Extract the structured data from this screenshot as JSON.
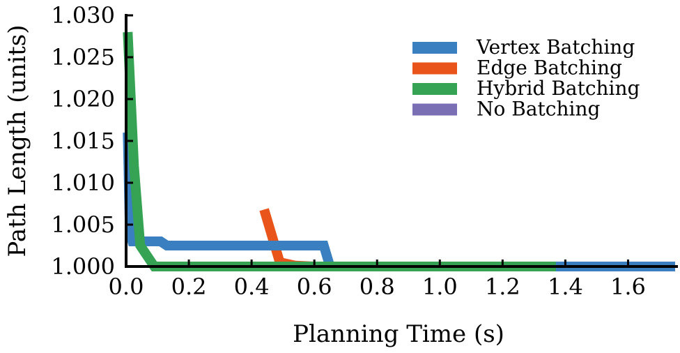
{
  "chart_data": {
    "type": "line",
    "xlabel": "Planning Time (s)",
    "ylabel": "Path Length (units)",
    "xlim": [
      0.0,
      1.75
    ],
    "ylim": [
      1.0,
      1.03
    ],
    "xticks": [
      "0.0",
      "0.2",
      "0.4",
      "0.6",
      "0.8",
      "1.0",
      "1.2",
      "1.4",
      "1.6"
    ],
    "yticks": [
      "1.000",
      "1.005",
      "1.010",
      "1.015",
      "1.020",
      "1.025",
      "1.030"
    ],
    "legend_position": "top-right",
    "grid": false,
    "series": [
      {
        "name": "Vertex Batching",
        "color": "#3a7fc0",
        "x": [
          0.005,
          0.012,
          0.02,
          0.11,
          0.13,
          0.2,
          0.4,
          0.63,
          0.65,
          1.75
        ],
        "y": [
          1.016,
          1.004,
          1.003,
          1.003,
          1.0025,
          1.0025,
          1.0025,
          1.0025,
          1.0,
          1.0
        ]
      },
      {
        "name": "Edge Batching",
        "color": "#e8541a",
        "x": [
          0.44,
          0.49,
          0.54,
          0.6,
          1.0,
          1.38,
          1.75
        ],
        "y": [
          1.0068,
          1.0005,
          1.0001,
          1.0,
          1.0,
          1.0,
          1.0
        ]
      },
      {
        "name": "Hybrid Batching",
        "color": "#35a353",
        "x": [
          0.005,
          0.025,
          0.045,
          0.09,
          0.2,
          0.6,
          1.0,
          1.37
        ],
        "y": [
          1.028,
          1.012,
          1.0025,
          1.0,
          1.0,
          1.0,
          1.0,
          1.0
        ]
      },
      {
        "name": "No Batching",
        "color": "#7a6fb5",
        "x": [],
        "y": []
      }
    ]
  }
}
